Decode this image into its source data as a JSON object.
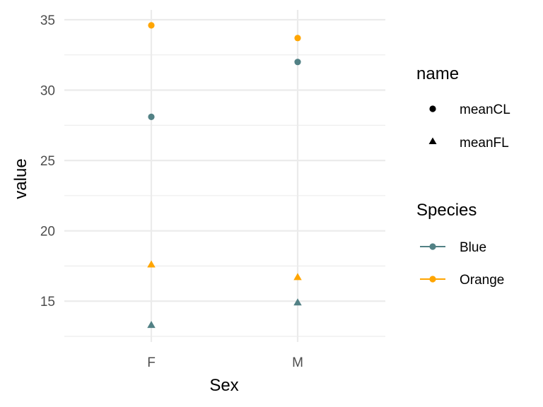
{
  "chart_data": {
    "type": "scatter",
    "xlabel": "Sex",
    "ylabel": "value",
    "categories": [
      "F",
      "M"
    ],
    "ylim": [
      12.1,
      35.7
    ],
    "yticks": [
      15,
      20,
      25,
      30,
      35
    ],
    "grid": true,
    "legend_position": "right",
    "series": [
      {
        "name": "meanCL",
        "species": "Blue",
        "shape": "circle",
        "values": [
          28.1,
          32.0
        ]
      },
      {
        "name": "meanCL",
        "species": "Orange",
        "shape": "circle",
        "values": [
          34.6,
          33.7
        ]
      },
      {
        "name": "meanFL",
        "species": "Blue",
        "shape": "triangle",
        "values": [
          13.3,
          14.9
        ]
      },
      {
        "name": "meanFL",
        "species": "Orange",
        "shape": "triangle",
        "values": [
          17.6,
          16.7
        ]
      }
    ],
    "legends": [
      {
        "title": "name",
        "entries": [
          {
            "label": "meanCL",
            "shape": "circle"
          },
          {
            "label": "meanFL",
            "shape": "triangle"
          }
        ]
      },
      {
        "title": "Species",
        "entries": [
          {
            "label": "Blue",
            "color": "#528185"
          },
          {
            "label": "Orange",
            "color": "#FFA500"
          }
        ]
      }
    ]
  },
  "colors": {
    "Blue": "#528185",
    "Orange": "#FFA500",
    "grid": "#ebebeb"
  }
}
